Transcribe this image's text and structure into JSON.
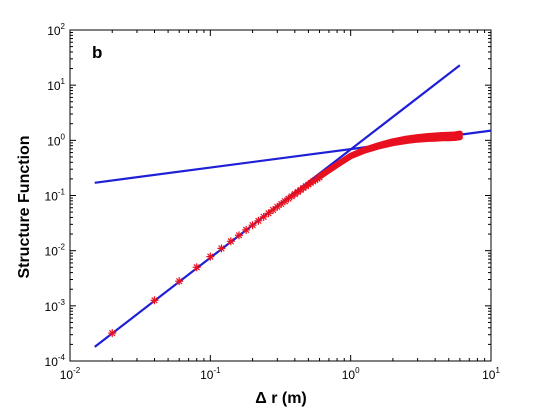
{
  "chart_data": {
    "type": "scatter",
    "panel_label": "b",
    "xlabel": "Δ r (m)",
    "ylabel": "Structure Function",
    "xscale": "log",
    "yscale": "log",
    "xlim": [
      0.01,
      10
    ],
    "ylim": [
      0.0001,
      100
    ],
    "grid": false,
    "x_ticks": [
      {
        "base": "10",
        "exp": "-2",
        "value": 0.01
      },
      {
        "base": "10",
        "exp": "-1",
        "value": 0.1
      },
      {
        "base": "10",
        "exp": "0",
        "value": 1
      },
      {
        "base": "10",
        "exp": "1",
        "value": 10
      }
    ],
    "y_ticks": [
      {
        "base": "10",
        "exp": "-4",
        "value": 0.0001
      },
      {
        "base": "10",
        "exp": "-3",
        "value": 0.001
      },
      {
        "base": "10",
        "exp": "-2",
        "value": 0.01
      },
      {
        "base": "10",
        "exp": "-1",
        "value": 0.1
      },
      {
        "base": "10",
        "exp": "0",
        "value": 1
      },
      {
        "base": "10",
        "exp": "1",
        "value": 10
      },
      {
        "base": "10",
        "exp": "2",
        "value": 100
      }
    ],
    "colors": {
      "markers": "#e8101e",
      "fit_lines": "#1f1fd6",
      "axes": "#000000"
    },
    "series": [
      {
        "marker": "asterisk",
        "color": "#e8101e",
        "x": [
          0.02,
          0.04,
          0.06,
          0.08,
          0.1,
          0.12,
          0.14,
          0.16,
          0.18,
          0.2,
          0.22,
          0.24,
          0.26,
          0.28,
          0.3,
          0.32,
          0.34,
          0.36,
          0.38,
          0.4,
          0.42,
          0.44,
          0.46,
          0.48,
          0.5,
          0.52,
          0.54,
          0.56,
          0.58,
          0.6
        ],
        "y": [
          0.00032,
          0.00126,
          0.0028,
          0.005,
          0.0078,
          0.011,
          0.0148,
          0.019,
          0.0238,
          0.029,
          0.0348,
          0.041,
          0.0476,
          0.0547,
          0.0623,
          0.0703,
          0.0787,
          0.0875,
          0.0967,
          0.106,
          0.116,
          0.126,
          0.137,
          0.147,
          0.158,
          0.169,
          0.18,
          0.191,
          0.202,
          0.213
        ]
      },
      {
        "marker": "dense-curve-band",
        "color": "#e8101e",
        "x": [
          0.6,
          0.8,
          1.0,
          1.25,
          1.6,
          2.0,
          2.5,
          3.0,
          3.5,
          4.0,
          4.5,
          5.0,
          5.5,
          6.0
        ],
        "y": [
          0.22,
          0.36,
          0.52,
          0.66,
          0.8,
          0.92,
          1.02,
          1.08,
          1.12,
          1.14,
          1.16,
          1.17,
          1.18,
          1.22
        ],
        "spread": [
          0.0,
          0.02,
          0.04,
          0.06,
          0.1,
          0.14,
          0.18,
          0.2,
          0.22,
          0.24,
          0.25,
          0.26,
          0.27,
          0.28
        ]
      }
    ],
    "fit_lines": [
      {
        "color": "#1f1fd6",
        "x": [
          0.015,
          6.0
        ],
        "y": [
          0.00018,
          23
        ]
      },
      {
        "color": "#1f1fd6",
        "x": [
          0.015,
          10.0
        ],
        "y": [
          0.17,
          1.5
        ]
      }
    ]
  }
}
